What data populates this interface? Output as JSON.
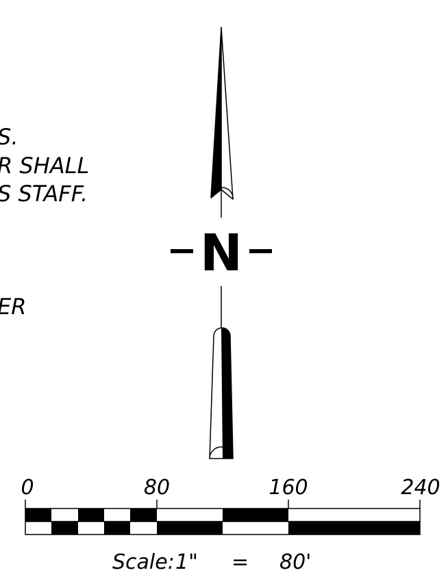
{
  "notes": {
    "line1": "S.",
    "line2": "R SHALL",
    "line3": "S STAFF.",
    "line4": "ER"
  },
  "north_arrow": {
    "letter": "N"
  },
  "scale_bar": {
    "tick_labels": [
      "0",
      "80",
      "160",
      "240"
    ],
    "caption": {
      "prefix": "Scale:",
      "drawing_value": "1\"",
      "equals": "=",
      "ground_value": "80'"
    }
  }
}
